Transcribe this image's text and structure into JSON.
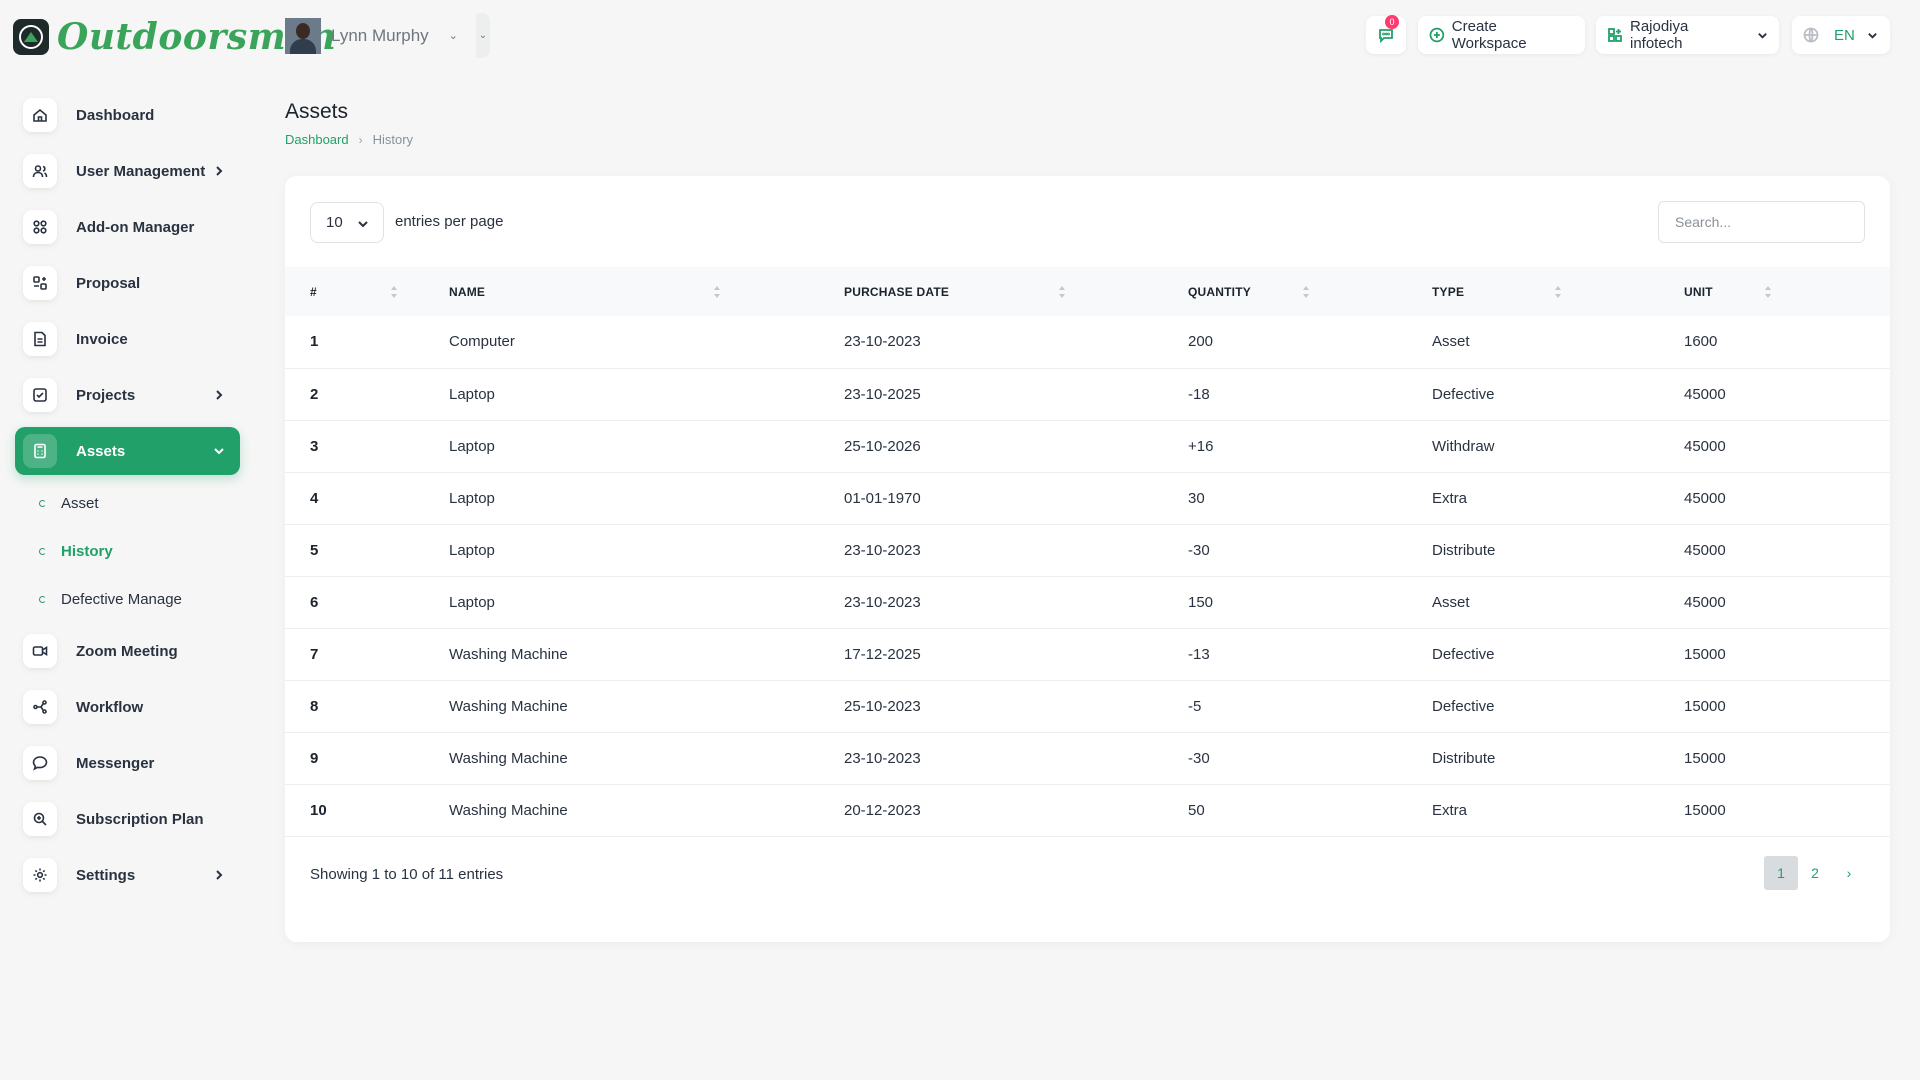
{
  "brand": {
    "name": "Outdoorsmen",
    "color": "#3aa55a"
  },
  "accent_color": "#21a06a",
  "sidebar": {
    "items": [
      {
        "label": "Dashboard",
        "icon": "home-icon"
      },
      {
        "label": "User Management",
        "icon": "users-icon",
        "expandable": true
      },
      {
        "label": "Add-on Manager",
        "icon": "grid-icon"
      },
      {
        "label": "Proposal",
        "icon": "proposal-icon"
      },
      {
        "label": "Invoice",
        "icon": "file-icon"
      },
      {
        "label": "Projects",
        "icon": "checkbox-icon",
        "expandable": true
      },
      {
        "label": "Assets",
        "icon": "calculator-icon",
        "active": true,
        "expanded": true
      },
      {
        "label": "Zoom Meeting",
        "icon": "video-icon"
      },
      {
        "label": "Workflow",
        "icon": "workflow-icon"
      },
      {
        "label": "Messenger",
        "icon": "chat-icon"
      },
      {
        "label": "Subscription Plan",
        "icon": "search-plan-icon"
      },
      {
        "label": "Settings",
        "icon": "gear-icon",
        "expandable": true
      }
    ],
    "assets_submenu": [
      {
        "label": "Asset"
      },
      {
        "label": "History",
        "active": true
      },
      {
        "label": "Defective Manage"
      }
    ]
  },
  "header": {
    "user_name": "Lynn Murphy",
    "message_count": "0",
    "create_workspace_label": "Create Workspace",
    "company_name": "Rajodiya infotech",
    "language": "EN"
  },
  "page": {
    "title": "Assets",
    "breadcrumb": {
      "home": "Dashboard",
      "current": "History"
    }
  },
  "table_controls": {
    "per_page_value": "10",
    "per_page_label": "entries per page",
    "search_placeholder": "Search..."
  },
  "table": {
    "columns": [
      "#",
      "NAME",
      "PURCHASE DATE",
      "QUANTITY",
      "TYPE",
      "UNIT"
    ],
    "rows": [
      [
        "1",
        "Computer",
        "23-10-2023",
        "200",
        "Asset",
        "1600"
      ],
      [
        "2",
        "Laptop",
        "23-10-2025",
        "-18",
        "Defective",
        "45000"
      ],
      [
        "3",
        "Laptop",
        "25-10-2026",
        "+16",
        "Withdraw",
        "45000"
      ],
      [
        "4",
        "Laptop",
        "01-01-1970",
        "30",
        "Extra",
        "45000"
      ],
      [
        "5",
        "Laptop",
        "23-10-2023",
        "-30",
        "Distribute",
        "45000"
      ],
      [
        "6",
        "Laptop",
        "23-10-2023",
        "150",
        "Asset",
        "45000"
      ],
      [
        "7",
        "Washing Machine",
        "17-12-2025",
        "-13",
        "Defective",
        "15000"
      ],
      [
        "8",
        "Washing Machine",
        "25-10-2023",
        "-5",
        "Defective",
        "15000"
      ],
      [
        "9",
        "Washing Machine",
        "23-10-2023",
        "-30",
        "Distribute",
        "15000"
      ],
      [
        "10",
        "Washing Machine",
        "20-12-2023",
        "50",
        "Extra",
        "15000"
      ]
    ]
  },
  "footer": {
    "showing_text": "Showing 1 to 10 of 11 entries",
    "pages": [
      "1",
      "2"
    ],
    "current_page": "1",
    "next_label": "›"
  }
}
